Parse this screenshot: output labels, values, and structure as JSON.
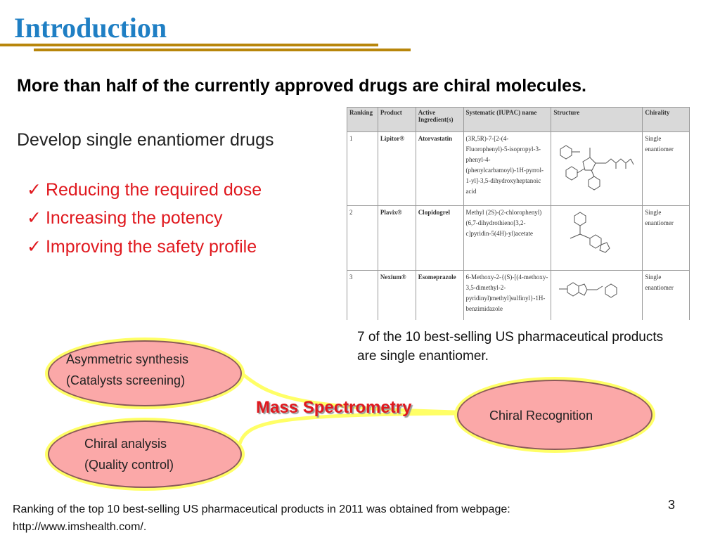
{
  "slide": {
    "title": "Introduction",
    "headline": "More than half of the currently approved drugs are chiral molecules.",
    "subhead": "Develop single enantiomer drugs",
    "benefits": [
      "Reducing the required dose",
      "Increasing the potency",
      "Improving the safety profile"
    ],
    "check_mark": "✓",
    "table": {
      "headers": [
        "Ranking",
        "Product",
        "Active Ingredient(s)",
        "Systematic (IUPAC) name",
        "Structure",
        "Chirality"
      ],
      "rows": [
        {
          "ranking": "1",
          "product": "Lipitor®",
          "ingredient": "Atorvastatin",
          "iupac": "(3R,5R)-7-[2-(4-Fluorophenyl)-5-isopropyl-3-phenyl-4-(phenylcarbamoyl)-1H-pyrrol-1-yl]-3,5-dihydroxyheptanoic acid",
          "chirality": "Single enantiomer"
        },
        {
          "ranking": "2",
          "product": "Plavix®",
          "ingredient": "Clopidogrel",
          "iupac": "Methyl (2S)-(2-chlorophenyl)(6,7-dihydrothieno[3,2-c]pyridin-5(4H)-yl)acetate",
          "chirality": "Single enantiomer"
        },
        {
          "ranking": "3",
          "product": "Nexium®",
          "ingredient": "Esomeprazole",
          "iupac": "6-Methoxy-2-{(S)-[(4-methoxy-3,5-dimethyl-2-pyridinyl)methyl]sulfinyl}-1H-benzimidazole",
          "chirality": "Single enantiomer"
        }
      ]
    },
    "caption": "7 of the 10 best-selling US pharmaceutical products are single enantiomer.",
    "diagram": {
      "node_synthesis_line1": "Asymmetric synthesis",
      "node_synthesis_line2": "(Catalysts screening)",
      "node_analysis_line1": "Chiral analysis",
      "node_analysis_line2": "(Quality control)",
      "center_label": "Mass Spectrometry",
      "node_recognition": "Chiral Recognition",
      "colors": {
        "ellipse_fill": "#fba8a8",
        "connector": "#ffff66",
        "accent_red": "#e0181e"
      }
    },
    "footnote": "Ranking of the top 10 best-selling US pharmaceutical products in 2011 was obtained from webpage: http://www.imshealth.com/.",
    "page_number": "3",
    "colors": {
      "title": "#1f7fc4",
      "rule": "#b8860b"
    }
  }
}
